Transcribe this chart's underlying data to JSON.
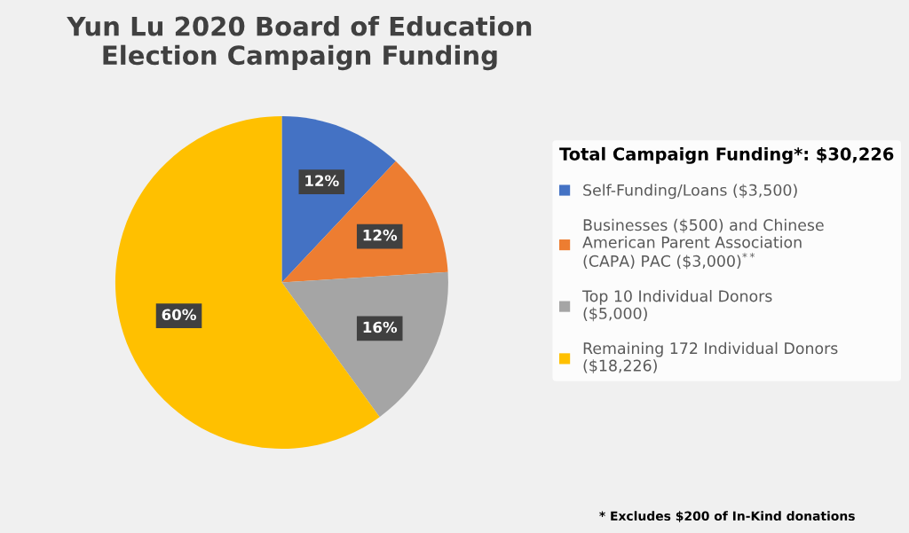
{
  "chart_data": {
    "type": "pie",
    "title": "Yun Lu 2020 Board of Education\nElection Campaign Funding",
    "categories": [
      "Self-Funding/Loans ($3,500)",
      "Businesses ($500) and Chinese\nAmerican Parent Association\n(CAPA) PAC ($3,000)$^{**}$",
      "Top 10 Individual Donors\n($5,000)",
      "Remaining 172 Individual Donors\n($18,226)"
    ],
    "values": [
      12,
      12,
      16,
      60
    ],
    "colors": [
      "#4472c4",
      "#ed7d31",
      "#a5a5a5",
      "#ffc000"
    ],
    "value_labels": [
      "12%",
      "12%",
      "16%",
      "60%"
    ],
    "legend": "right",
    "legend_title": "Total Campaign Funding*: $30,226",
    "annotations": [
      "* Excludes $200 of In-Kind donations"
    ]
  }
}
